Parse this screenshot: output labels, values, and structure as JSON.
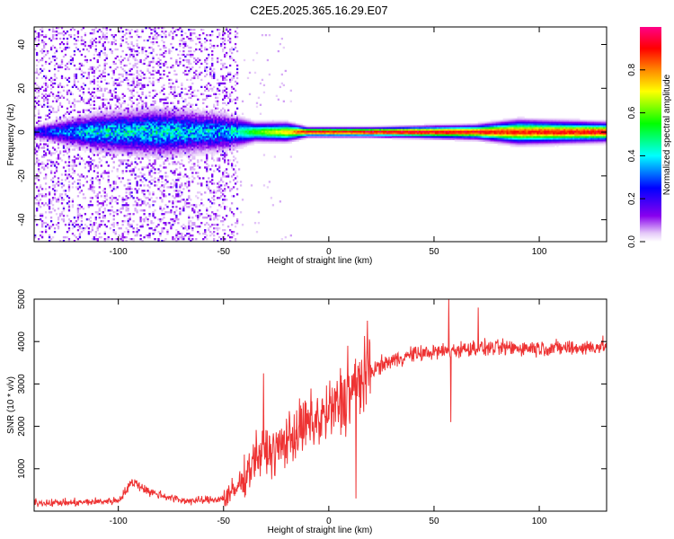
{
  "title": "C2E5.2025.365.16.29.E07",
  "chart_data": [
    {
      "type": "heatmap",
      "xlabel": "Height of straight line (km)",
      "ylabel": "Frequency (Hz)",
      "xlim": [
        -140,
        132
      ],
      "ylim": [
        -50,
        48
      ],
      "x_ticks": [
        -100,
        -50,
        0,
        50,
        100
      ],
      "y_ticks": [
        -40,
        -20,
        0,
        20,
        40
      ],
      "colorbar": {
        "label": "Normalized spectral amplitude",
        "range": [
          0,
          1
        ],
        "ticks": [
          0.0,
          0.2,
          0.4,
          0.6,
          0.8
        ],
        "colors": [
          "#ffffff",
          "#e4c8f8",
          "#8800ee",
          "#0000ff",
          "#00ffff",
          "#00ff00",
          "#ffff00",
          "#ff8800",
          "#ff0000",
          "#ff0088"
        ]
      },
      "band_profile": [
        {
          "x": -140,
          "halfwidth_hz": 1.5,
          "peak": 0.25
        },
        {
          "x": -110,
          "halfwidth_hz": 4,
          "peak": 0.45
        },
        {
          "x": -80,
          "halfwidth_hz": 5,
          "peak": 0.45
        },
        {
          "x": -50,
          "halfwidth_hz": 4,
          "peak": 0.4
        },
        {
          "x": -42,
          "halfwidth_hz": 3,
          "peak": 0.45
        },
        {
          "x": -35,
          "halfwidth_hz": 2,
          "peak": 0.6
        },
        {
          "x": -20,
          "halfwidth_hz": 2,
          "peak": 0.75
        },
        {
          "x": -10,
          "halfwidth_hz": 1,
          "peak": 0.95
        },
        {
          "x": 10,
          "halfwidth_hz": 1,
          "peak": 0.95
        },
        {
          "x": 20,
          "halfwidth_hz": 1,
          "peak": 1.0
        },
        {
          "x": 70,
          "halfwidth_hz": 1.5,
          "peak": 0.95
        },
        {
          "x": 90,
          "halfwidth_hz": 2.5,
          "peak": 0.9
        },
        {
          "x": 132,
          "halfwidth_hz": 2,
          "peak": 0.95
        }
      ],
      "noise_region_x": [
        -140,
        -43
      ]
    },
    {
      "type": "line",
      "xlabel": "Height of straight line (km)",
      "ylabel": "SNR (10 * v/v)",
      "xlim": [
        -140,
        132
      ],
      "ylim": [
        0,
        5000
      ],
      "x_ticks": [
        -100,
        -50,
        0,
        50,
        100
      ],
      "y_ticks": [
        1000,
        2000,
        3000,
        4000,
        5000
      ],
      "color": "#ee3333",
      "series": [
        {
          "name": "SNR",
          "x": [
            -140,
            -120,
            -100,
            -93,
            -85,
            -70,
            -60,
            -50,
            -45,
            -40,
            -35,
            -30,
            -25,
            -20,
            -15,
            -10,
            -5,
            0,
            5,
            10,
            15,
            20,
            25,
            30,
            40,
            50,
            60,
            70,
            80,
            90,
            100,
            110,
            120,
            132
          ],
          "y": [
            200,
            200,
            250,
            700,
            450,
            250,
            250,
            300,
            450,
            800,
            1300,
            1400,
            1400,
            1700,
            1850,
            2050,
            2150,
            2300,
            2550,
            2800,
            3100,
            3300,
            3450,
            3550,
            3700,
            3750,
            3800,
            3850,
            3850,
            3850,
            3850,
            3850,
            3850,
            3900
          ]
        }
      ],
      "spikes": [
        {
          "x": -31,
          "y": 3250
        },
        {
          "x": 9,
          "y": 3900
        },
        {
          "x": 13,
          "y": 300
        },
        {
          "x": 57,
          "y": 5000
        },
        {
          "x": 58,
          "y": 2100
        },
        {
          "x": 71,
          "y": 4800
        }
      ]
    }
  ]
}
